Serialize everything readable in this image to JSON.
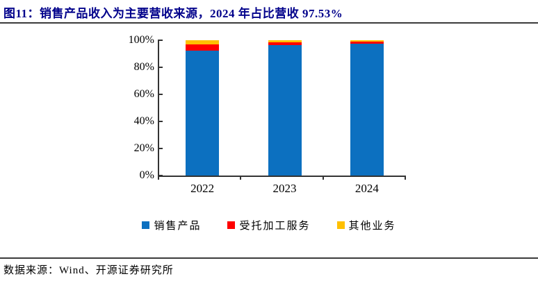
{
  "header": {
    "title": "图11：销售产品收入为主要营收来源，2024 年占比营收 97.53%"
  },
  "footer": {
    "source": "数据来源：Wind、开源证券研究所"
  },
  "colors": {
    "title_text": "#00008B",
    "axis": "#333333",
    "divider": "#3B3B3B",
    "blue": "#0C70C0",
    "red": "#FE0000",
    "yellow": "#FFC000"
  },
  "chart_data": {
    "type": "bar",
    "stacked": true,
    "orientation": "vertical",
    "categories": [
      "2022",
      "2023",
      "2024"
    ],
    "series": [
      {
        "name": "销售产品",
        "color": "#0C70C0",
        "values": [
          92.5,
          96.5,
          97.53
        ]
      },
      {
        "name": "受托加工服务",
        "color": "#FE0000",
        "values": [
          4.6,
          2.0,
          1.2
        ]
      },
      {
        "name": "其他业务",
        "color": "#FFC000",
        "values": [
          2.9,
          1.5,
          1.27
        ]
      }
    ],
    "y_tick_labels": [
      "0%",
      "20%",
      "40%",
      "60%",
      "80%",
      "100%"
    ],
    "y_tick_values": [
      0,
      20,
      40,
      60,
      80,
      100
    ],
    "ylim": [
      0,
      100
    ],
    "legend_position": "bottom",
    "grid": false
  }
}
